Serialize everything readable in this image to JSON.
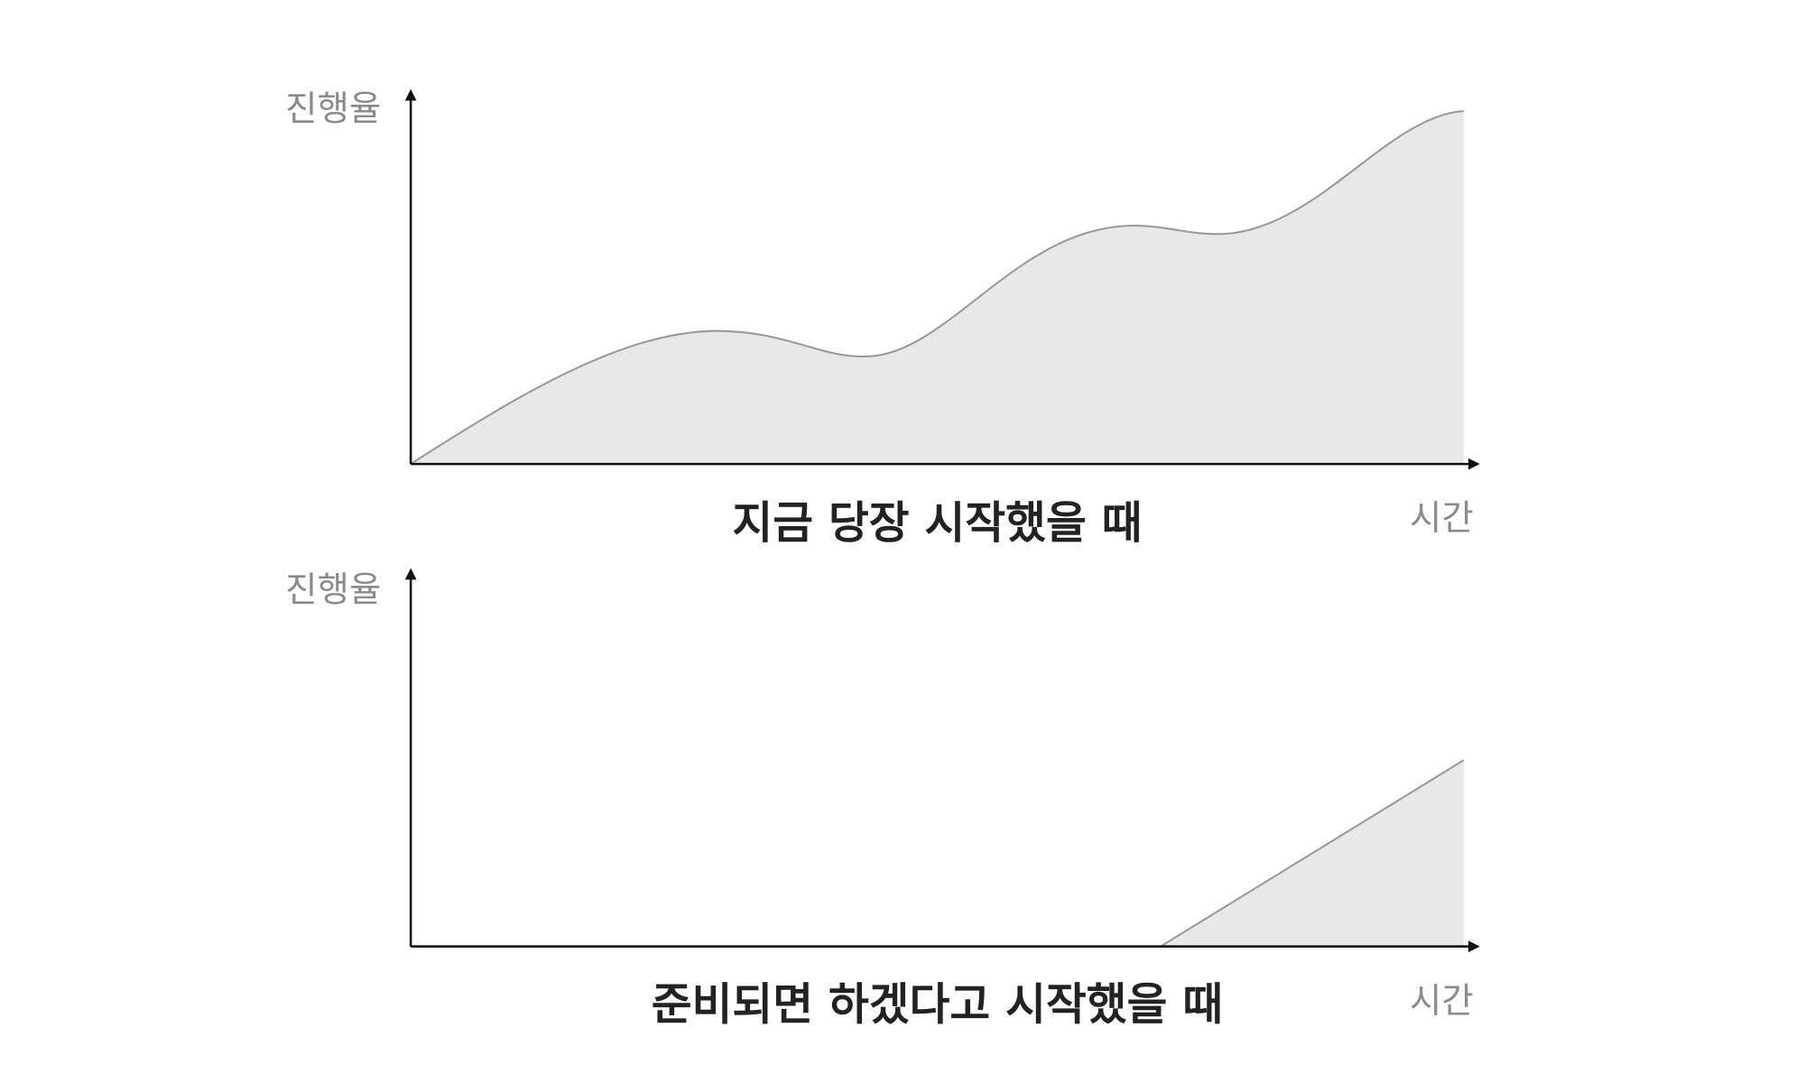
{
  "charts": [
    {
      "y_label": "진행율",
      "x_label": "시간",
      "caption": "지금 당장 시작했을 때"
    },
    {
      "y_label": "진행율",
      "x_label": "시간",
      "caption": "준비되면 하겠다고 시작했을 때"
    }
  ]
}
